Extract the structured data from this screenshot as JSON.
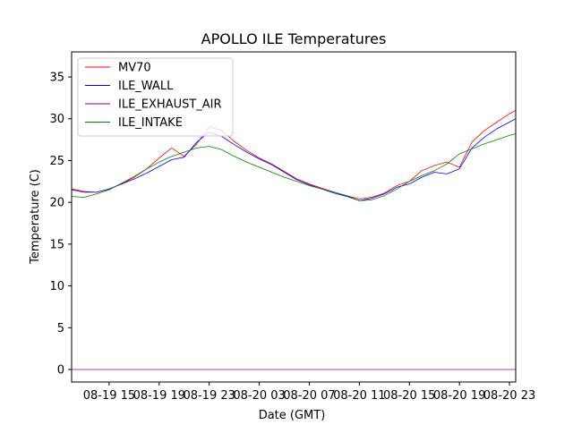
{
  "chart_data": {
    "type": "line",
    "title": "APOLLO ILE Temperatures",
    "xlabel": "Date (GMT)",
    "ylabel": "Temperature (C)",
    "x_unit": "hours since 2019-08-19 12:00 GMT",
    "xlim": [
      0,
      35.5
    ],
    "ylim": [
      -1.5,
      38
    ],
    "yticks": [
      0,
      5,
      10,
      15,
      20,
      25,
      30,
      35
    ],
    "xticks": [
      {
        "value": 3,
        "label": "08-19 15"
      },
      {
        "value": 7,
        "label": "08-19 19"
      },
      {
        "value": 11,
        "label": "08-19 23"
      },
      {
        "value": 15,
        "label": "08-20 03"
      },
      {
        "value": 19,
        "label": "08-20 07"
      },
      {
        "value": 23,
        "label": "08-20 11"
      },
      {
        "value": 27,
        "label": "08-20 15"
      },
      {
        "value": 31,
        "label": "08-20 19"
      },
      {
        "value": 35,
        "label": "08-20 23"
      }
    ],
    "grid": false,
    "legend_position": "upper-left",
    "series": [
      {
        "name": "MV70",
        "color": "#ff0000",
        "x": [
          0,
          1,
          2,
          3,
          4,
          5,
          6,
          7,
          8,
          9,
          10,
          11,
          12,
          13,
          14,
          15,
          16,
          17,
          18,
          19,
          20,
          21,
          22,
          23,
          24,
          25,
          26,
          27,
          28,
          29,
          30,
          31,
          32,
          33,
          34,
          35,
          35.5
        ],
        "values": [
          21.6,
          21.3,
          21.2,
          21.6,
          22.2,
          23.0,
          24.0,
          25.3,
          26.5,
          25.5,
          27.0,
          29.0,
          28.6,
          27.3,
          26.2,
          25.3,
          24.6,
          23.7,
          22.8,
          22.2,
          21.7,
          21.2,
          20.8,
          20.4,
          20.6,
          21.1,
          22.0,
          22.5,
          23.8,
          24.4,
          24.8,
          24.2,
          27.2,
          28.6,
          29.6,
          30.6,
          31.0
        ]
      },
      {
        "name": "ILE_WALL",
        "color": "#0000ff",
        "x": [
          0,
          1,
          2,
          3,
          4,
          5,
          6,
          7,
          8,
          9,
          10,
          11,
          12,
          13,
          14,
          15,
          16,
          17,
          18,
          19,
          20,
          21,
          22,
          23,
          24,
          25,
          26,
          27,
          28,
          29,
          30,
          31,
          32,
          33,
          34,
          35,
          35.5
        ],
        "values": [
          21.5,
          21.2,
          21.2,
          21.6,
          22.2,
          22.8,
          23.5,
          24.3,
          25.1,
          25.4,
          27.2,
          28.4,
          27.9,
          26.9,
          26.0,
          25.2,
          24.5,
          23.6,
          22.7,
          22.1,
          21.6,
          21.1,
          20.7,
          20.2,
          20.5,
          21.0,
          21.8,
          22.2,
          23.0,
          23.6,
          23.4,
          24.0,
          26.5,
          27.8,
          28.8,
          29.6,
          30.0
        ]
      },
      {
        "name": "ILE_EXHAUST_AIR",
        "color": "#800080",
        "x": [
          0,
          35.5
        ],
        "values": [
          0.0,
          0.0
        ]
      },
      {
        "name": "ILE_INTAKE",
        "color": "#008000",
        "x": [
          0,
          1,
          2,
          3,
          4,
          5,
          6,
          7,
          8,
          9,
          10,
          11,
          12,
          13,
          14,
          15,
          16,
          17,
          18,
          19,
          20,
          21,
          22,
          23,
          24,
          25,
          26,
          27,
          28,
          29,
          30,
          31,
          32,
          33,
          34,
          35,
          35.5
        ],
        "values": [
          20.7,
          20.6,
          21.0,
          21.5,
          22.3,
          23.1,
          24.0,
          24.8,
          25.5,
          26.0,
          26.5,
          26.7,
          26.3,
          25.5,
          24.8,
          24.2,
          23.6,
          23.0,
          22.5,
          22.0,
          21.6,
          21.2,
          20.8,
          20.2,
          20.3,
          20.8,
          21.6,
          22.5,
          23.2,
          23.8,
          24.6,
          25.8,
          26.4,
          27.0,
          27.5,
          28.0,
          28.2
        ]
      }
    ]
  }
}
